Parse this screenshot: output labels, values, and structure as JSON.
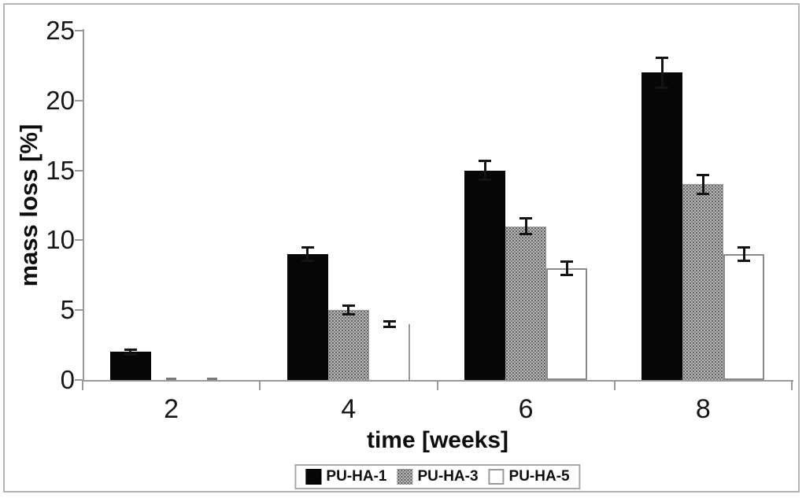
{
  "figure": {
    "background": "#ffffff",
    "frame_color": "#b5b5b5"
  },
  "chart_data": {
    "type": "bar",
    "title": "",
    "xlabel": "time [weeks]",
    "ylabel": "mass loss [%]",
    "categories": [
      "2",
      "4",
      "6",
      "8"
    ],
    "ylim": [
      0,
      25
    ],
    "yticks": [
      0,
      5,
      10,
      15,
      20,
      25
    ],
    "grid": false,
    "legend_position": "bottom-center",
    "series": [
      {
        "name": "PU-HA-1",
        "fill": "black",
        "values": [
          2,
          9,
          15,
          22
        ],
        "errors": [
          0.2,
          0.5,
          0.7,
          1.1
        ]
      },
      {
        "name": "PU-HA-3",
        "fill": "dotted-gray",
        "values": [
          0,
          5,
          11,
          14
        ],
        "errors": [
          0.05,
          0.35,
          0.6,
          0.7
        ]
      },
      {
        "name": "PU-HA-5",
        "fill": "white-outline",
        "values": [
          0,
          4,
          8,
          9
        ],
        "errors": [
          0.05,
          0.25,
          0.5,
          0.5
        ]
      }
    ],
    "colors": {
      "bar_black": "#060606",
      "bar_gray_pattern": "#9e9e9e",
      "bar_white": "#ffffff",
      "axis": "#9a9a9a",
      "error_bar": "#141414",
      "text": "#111111"
    },
    "render_artifacts": {
      "pu_ha_5_week4_drawn_as_right_edge_only": true,
      "near_zero_bars_drawn_as_baseline_dashes": true
    }
  }
}
